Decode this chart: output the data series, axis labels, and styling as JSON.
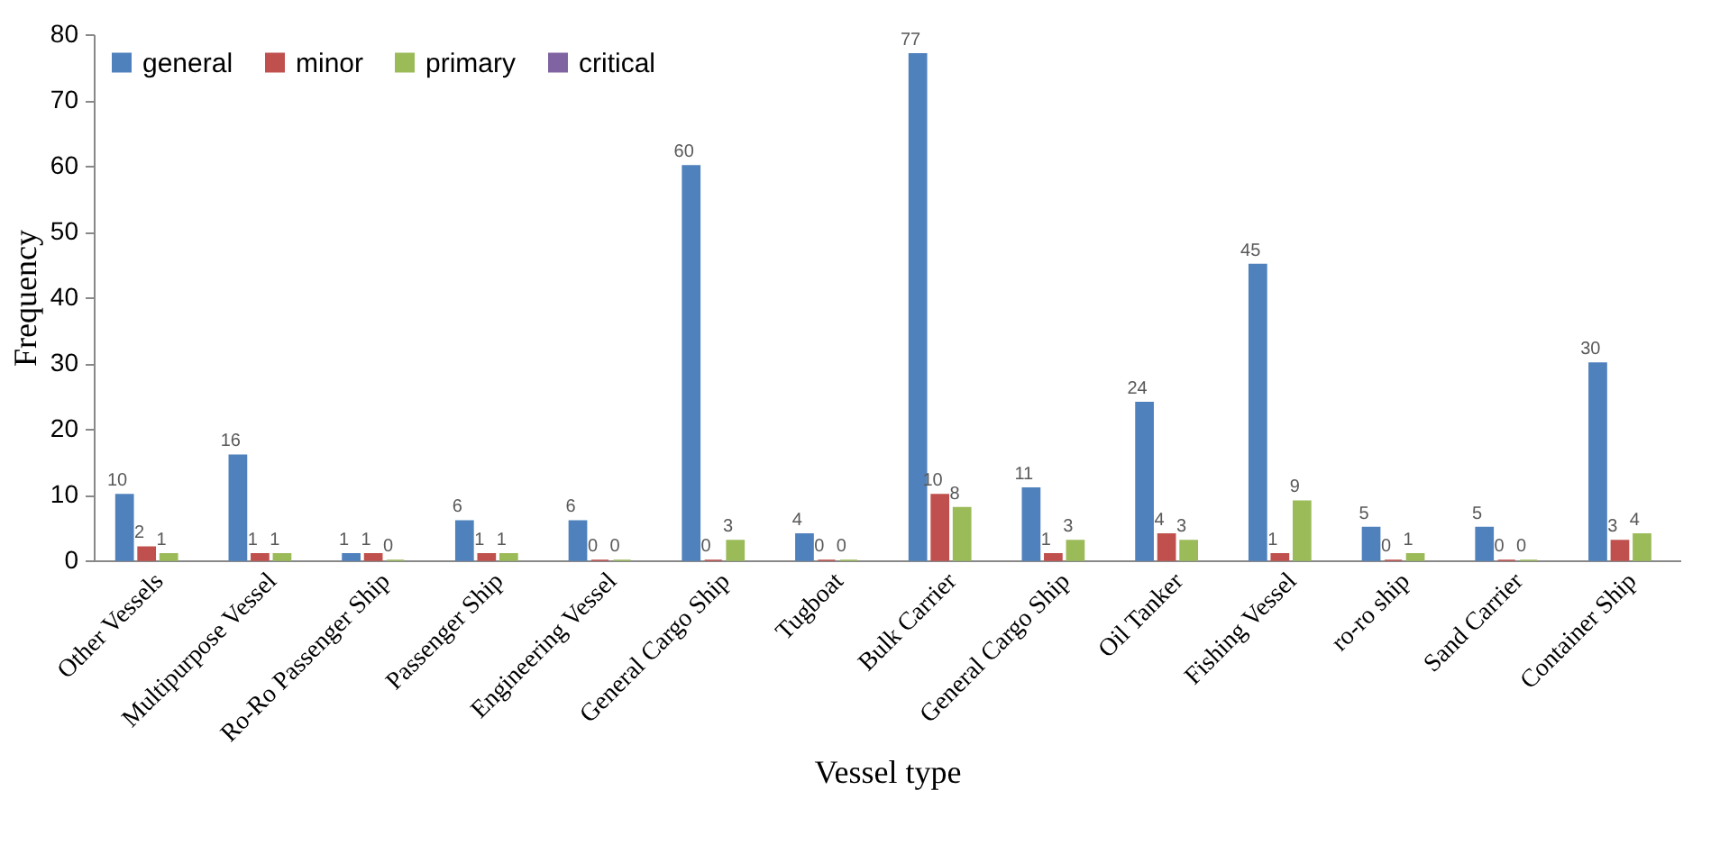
{
  "chart_data": {
    "type": "bar",
    "xlabel": "Vessel type",
    "ylabel": "Frequency",
    "categories": [
      "Other Vessels",
      "Multipurpose Vessel",
      "Ro-Ro Passenger Ship",
      "Passenger Ship",
      "Engineering Vessel",
      "General Cargo Ship",
      "Tugboat",
      "Bulk Carrier",
      "General Cargo Ship",
      "Oil Tanker",
      "Fishing Vessel",
      "ro-ro ship",
      "Sand Carrier",
      "Container Ship"
    ],
    "series": [
      {
        "name": "general",
        "color": "#4f81bd",
        "values": [
          10,
          16,
          1,
          6,
          6,
          60,
          4,
          77,
          11,
          24,
          45,
          5,
          5,
          30
        ]
      },
      {
        "name": "minor",
        "color": "#c0504d",
        "values": [
          2,
          1,
          1,
          1,
          0,
          0,
          0,
          10,
          1,
          4,
          1,
          0,
          0,
          3
        ]
      },
      {
        "name": "primary",
        "color": "#9bbb59",
        "values": [
          1,
          1,
          0,
          1,
          0,
          3,
          0,
          8,
          3,
          3,
          9,
          1,
          0,
          4
        ]
      },
      {
        "name": "critical",
        "color": "#8064a2",
        "values": [
          null,
          null,
          null,
          null,
          null,
          null,
          null,
          null,
          null,
          null,
          null,
          null,
          null,
          null
        ]
      }
    ],
    "ylim": [
      0,
      80
    ],
    "yticks": [
      0,
      10,
      20,
      30,
      40,
      50,
      60,
      70,
      80
    ],
    "grid": false,
    "legend": "top left",
    "data_labels": true
  }
}
